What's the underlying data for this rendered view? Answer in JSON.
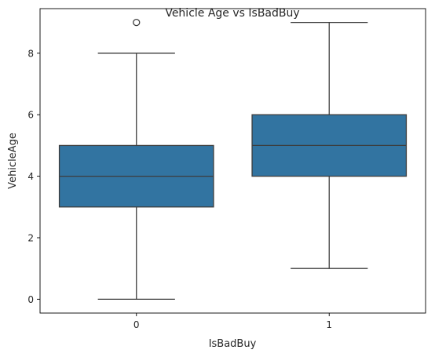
{
  "colors": {
    "box_fill": "#3274a1",
    "line": "#3d3d3d",
    "frame": "#000000",
    "text": "#262626"
  },
  "chart_data": {
    "type": "box",
    "title": "Vehicle Age vs IsBadBuy",
    "xlabel": "IsBadBuy",
    "ylabel": "VehicleAge",
    "categories": [
      "0",
      "1"
    ],
    "ylim": [
      -0.45,
      9.45
    ],
    "yticks": [
      0,
      2,
      4,
      6,
      8
    ],
    "ytick_labels": [
      "0",
      "2",
      "4",
      "6",
      "8"
    ],
    "grid": false,
    "boxes": [
      {
        "category": "0",
        "whisker_low": 0,
        "q1": 3,
        "median": 4,
        "q3": 5,
        "whisker_high": 8,
        "outliers": [
          9
        ]
      },
      {
        "category": "1",
        "whisker_low": 1,
        "q1": 4,
        "median": 5,
        "q3": 6,
        "whisker_high": 9,
        "outliers": []
      }
    ]
  }
}
